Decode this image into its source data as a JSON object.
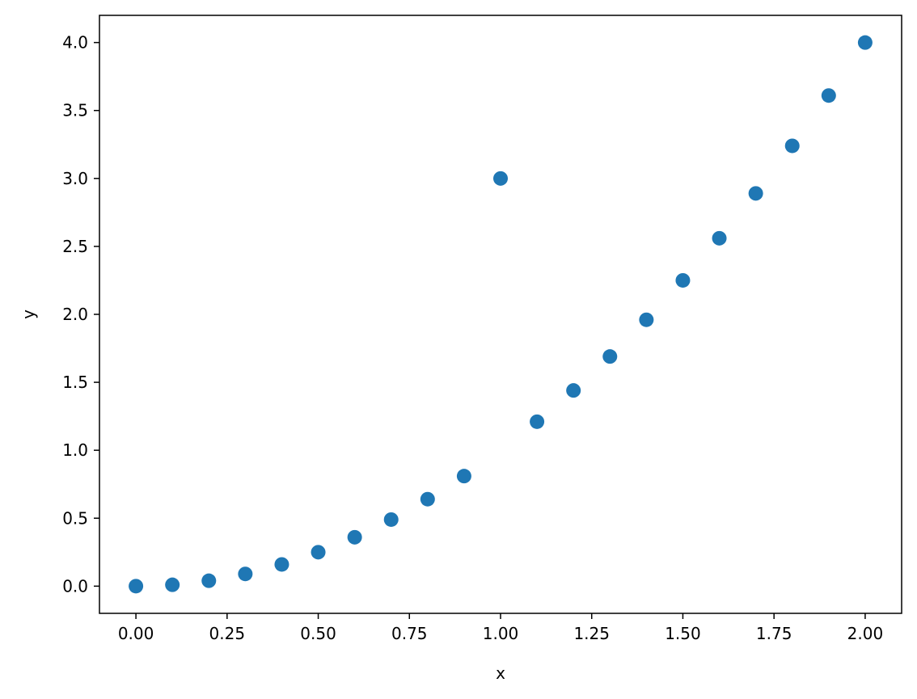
{
  "chart_data": {
    "type": "scatter",
    "title": "",
    "xlabel": "x",
    "ylabel": "y",
    "xlim": [
      -0.1,
      2.1
    ],
    "ylim": [
      -0.2,
      4.2
    ],
    "grid": false,
    "legend": "none",
    "marker_color": "#1f77b4",
    "x_ticks": [
      0.0,
      0.25,
      0.5,
      0.75,
      1.0,
      1.25,
      1.5,
      1.75,
      2.0
    ],
    "x_tick_labels": [
      "0.00",
      "0.25",
      "0.50",
      "0.75",
      "1.00",
      "1.25",
      "1.50",
      "1.75",
      "2.00"
    ],
    "y_ticks": [
      0.0,
      0.5,
      1.0,
      1.5,
      2.0,
      2.5,
      3.0,
      3.5,
      4.0
    ],
    "y_tick_labels": [
      "0.0",
      "0.5",
      "1.0",
      "1.5",
      "2.0",
      "2.5",
      "3.0",
      "3.5",
      "4.0"
    ],
    "series": [
      {
        "x": [
          0.0,
          0.1,
          0.2,
          0.3,
          0.4,
          0.5,
          0.6,
          0.7,
          0.8,
          0.9,
          1.0,
          1.1,
          1.2,
          1.3,
          1.4,
          1.5,
          1.6,
          1.7,
          1.8,
          1.9,
          2.0
        ],
        "y": [
          0.0,
          0.01,
          0.04,
          0.09,
          0.16,
          0.25,
          0.36,
          0.49,
          0.64,
          0.81,
          3.0,
          1.21,
          1.44,
          1.69,
          1.96,
          2.25,
          2.56,
          2.89,
          3.24,
          3.61,
          4.0
        ]
      }
    ]
  }
}
